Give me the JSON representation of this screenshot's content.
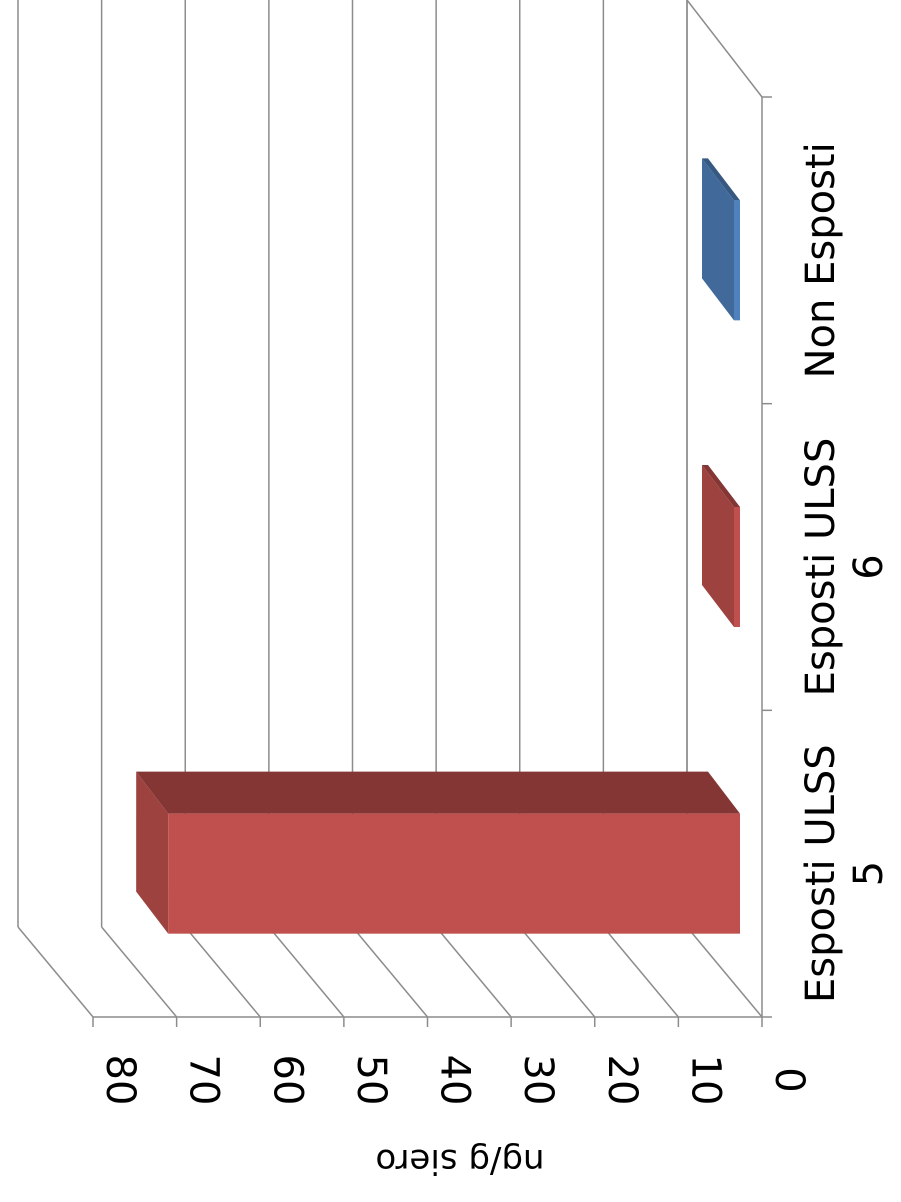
{
  "chart_data": {
    "type": "bar",
    "orientation": "rotated-90-cw",
    "three_d": true,
    "categories": [
      "Esposti ULSS 5",
      "Esposti ULSS 6",
      "Non Esposti"
    ],
    "category_label_lines": [
      [
        "Esposti ULSS",
        "5"
      ],
      [
        "Esposti ULSS",
        "6"
      ],
      [
        "Non Esposti"
      ]
    ],
    "values": [
      74,
      4,
      0.3
    ],
    "bar_colors": [
      "#C0504D",
      "#C0504D",
      "#4F81BD"
    ],
    "ylabel": "ng/g siero",
    "xlabel": "",
    "ylim": [
      0,
      80
    ],
    "yticks": [
      0,
      10,
      20,
      30,
      40,
      50,
      60,
      70,
      80
    ],
    "grid": true,
    "legend": "none"
  }
}
